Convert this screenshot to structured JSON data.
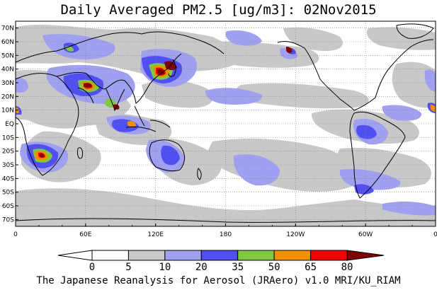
{
  "title": "Daily Averaged PM2.5 [ug/m3]: 02Nov2015",
  "footer": "The Japanese Reanalysis for Aerosol (JRAero) v1.0 MRI/KU_RIAM",
  "map": {
    "projection": "cylindrical-equidistant",
    "lon_range": [
      0,
      360
    ],
    "lat_range": [
      -75,
      75
    ],
    "lat_ticks": [
      "70N",
      "60N",
      "50N",
      "40N",
      "30N",
      "20N",
      "10N",
      "EQ",
      "10S",
      "20S",
      "30S",
      "40S",
      "50S",
      "60S",
      "70S"
    ],
    "lon_ticks": [
      "0",
      "60E",
      "120E",
      "180",
      "120W",
      "60W",
      "0"
    ],
    "gridlines": "dotted",
    "coastline_color": "#000000"
  },
  "colorbar": {
    "levels": [
      "0",
      "5",
      "10",
      "20",
      "35",
      "50",
      "65",
      "80"
    ],
    "colors": [
      "#ffffff",
      "#c8c8c8",
      "#a0a0f0",
      "#5050f0",
      "#80c840",
      "#f09000",
      "#f00000",
      "#800000"
    ],
    "units": "ug/m3",
    "arrows": "both-ends"
  }
}
